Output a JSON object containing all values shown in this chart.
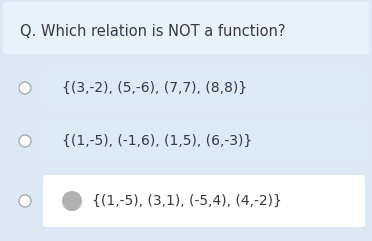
{
  "background_color": "#dce9f5",
  "title_bg_color": "#e8f2fa",
  "option_bg_color": "#daeaf7",
  "answer_bg_color": "#ffffff",
  "title_text": "Q. Which relation is NOT a function?",
  "title_fontsize": 10.5,
  "option1_text": "{(3,-2), (5,-6), (7,7), (8,8)}",
  "option2_text": "{(1,-5), (-1,6), (1,5), (6,-3)}",
  "option3_text": "{(1,-5), (3,1), (-5,4), (4,-2)}",
  "option_fontsize": 10.0,
  "radio_color": "#ffffff",
  "radio_edge_color": "#aaaaaa",
  "bullet_color": "#b0b0b0",
  "text_color": "#3a3a3a"
}
